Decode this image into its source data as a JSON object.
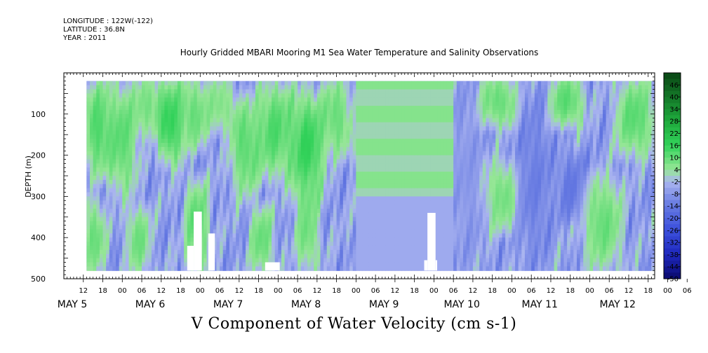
{
  "header": {
    "longitude": "LONGITUDE : 122W(-122)",
    "latitude": "LATITUDE : 36.8N",
    "year": "YEAR : 2011"
  },
  "chart_data": {
    "type": "heatmap",
    "title": "Hourly Gridded MBARI Mooring M1 Sea Water Temperature and Salinity Observations",
    "caption": "V Component of Water Velocity (cm s-1)",
    "ylabel": "DEPTH (m)",
    "xlabel": "",
    "x_range_hours": [
      0,
      182
    ],
    "x_start": "2011-05-05 06:00",
    "ylim": [
      500,
      0
    ],
    "y_ticks": [
      100,
      200,
      300,
      400,
      500
    ],
    "hour_tick_labels": [
      "12",
      "18",
      "00",
      "06",
      "12",
      "18",
      "00",
      "06",
      "12",
      "18",
      "00",
      "06",
      "12",
      "18",
      "00",
      "06",
      "12",
      "18",
      "00",
      "06",
      "12",
      "18",
      "00",
      "06",
      "12",
      "18",
      "00",
      "06",
      "12",
      "18",
      "00",
      "06"
    ],
    "day_labels": [
      "MAY 5",
      "MAY 6",
      "MAY 7",
      "MAY 8",
      "MAY 9",
      "MAY 10",
      "MAY 11",
      "MAY 12"
    ],
    "colorbar_labels": [
      "46",
      "40",
      "34",
      "28",
      "22",
      "16",
      "10",
      "4",
      "-2",
      "-8",
      "-14",
      "-20",
      "-26",
      "-32",
      "-38",
      "-44",
      "-50"
    ],
    "colorbar_range": [
      -50,
      52
    ],
    "data_depth_range": [
      20,
      480
    ],
    "grid": false,
    "regions": [
      {
        "t0": 7,
        "t1": 14,
        "d0": 20,
        "d1": 250,
        "v": 10
      },
      {
        "t0": 14,
        "t1": 22,
        "d0": 20,
        "d1": 300,
        "v": 8
      },
      {
        "t0": 22,
        "t1": 30,
        "d0": 20,
        "d1": 150,
        "v": 4
      },
      {
        "t0": 30,
        "t1": 36,
        "d0": 20,
        "d1": 220,
        "v": 14
      },
      {
        "t0": 36,
        "t1": 44,
        "d0": 20,
        "d1": 180,
        "v": 6
      },
      {
        "t0": 44,
        "t1": 52,
        "d0": 20,
        "d1": 140,
        "v": 2
      },
      {
        "t0": 52,
        "t1": 60,
        "d0": 60,
        "d1": 300,
        "v": 8
      },
      {
        "t0": 60,
        "t1": 70,
        "d0": 20,
        "d1": 260,
        "v": 10
      },
      {
        "t0": 70,
        "t1": 80,
        "d0": 40,
        "d1": 320,
        "v": 14
      },
      {
        "t0": 80,
        "t1": 88,
        "d0": 20,
        "d1": 200,
        "v": 6
      },
      {
        "t0": 7,
        "t1": 12,
        "d0": 320,
        "d1": 480,
        "v": 6
      },
      {
        "t0": 20,
        "t1": 26,
        "d0": 330,
        "d1": 480,
        "v": 5
      },
      {
        "t0": 38,
        "t1": 44,
        "d0": 260,
        "d1": 480,
        "v": 8
      },
      {
        "t0": 58,
        "t1": 64,
        "d0": 330,
        "d1": 480,
        "v": 6
      },
      {
        "t0": 72,
        "t1": 78,
        "d0": 280,
        "d1": 480,
        "v": 5
      },
      {
        "t0": 90,
        "t1": 120,
        "d0": 20,
        "d1": 300,
        "v": 3
      },
      {
        "t0": 90,
        "t1": 120,
        "d0": 300,
        "d1": 480,
        "v": -6
      },
      {
        "t0": 120,
        "t1": 128,
        "d0": 20,
        "d1": 480,
        "v": -8
      },
      {
        "t0": 128,
        "t1": 140,
        "d0": 20,
        "d1": 120,
        "v": 6
      },
      {
        "t0": 130,
        "t1": 140,
        "d0": 220,
        "d1": 380,
        "v": 4
      },
      {
        "t0": 140,
        "t1": 150,
        "d0": 40,
        "d1": 480,
        "v": -14
      },
      {
        "t0": 150,
        "t1": 160,
        "d0": 20,
        "d1": 120,
        "v": 8
      },
      {
        "t0": 152,
        "t1": 162,
        "d0": 200,
        "d1": 350,
        "v": -16
      },
      {
        "t0": 160,
        "t1": 172,
        "d0": 250,
        "d1": 480,
        "v": 6
      },
      {
        "t0": 170,
        "t1": 182,
        "d0": 20,
        "d1": 200,
        "v": 8
      }
    ],
    "gaps": [
      {
        "t0": 38.0,
        "t1": 40.0,
        "d0": 420,
        "d1": 480
      },
      {
        "t0": 40.0,
        "t1": 42.5,
        "d0": 337,
        "d1": 480
      },
      {
        "t0": 44.5,
        "t1": 46.5,
        "d0": 390,
        "d1": 480
      },
      {
        "t0": 62.0,
        "t1": 66.5,
        "d0": 460,
        "d1": 480
      },
      {
        "t0": 111.0,
        "t1": 112.0,
        "d0": 455,
        "d1": 480
      },
      {
        "t0": 112.0,
        "t1": 114.5,
        "d0": 340,
        "d1": 480
      },
      {
        "t0": 114.5,
        "t1": 115.0,
        "d0": 455,
        "d1": 480
      }
    ]
  }
}
